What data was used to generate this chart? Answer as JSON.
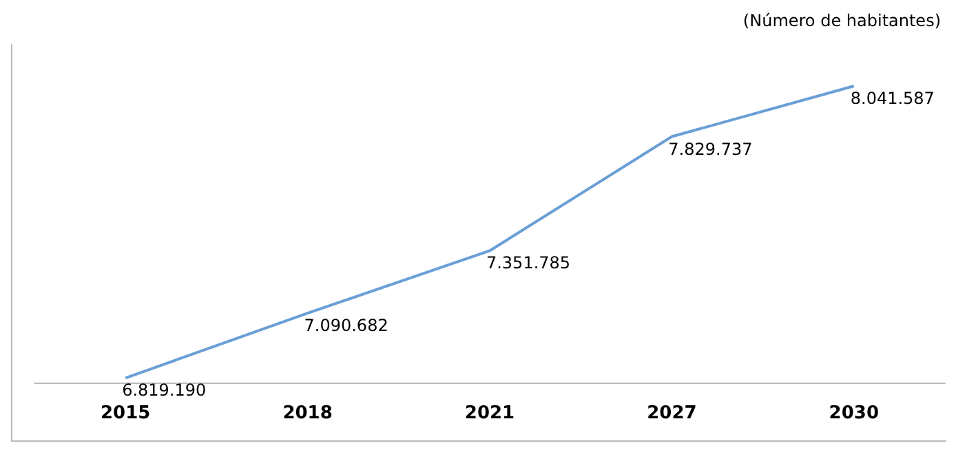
{
  "chart_data": {
    "type": "line",
    "ylabel": "(Número de habitantes)",
    "categories": [
      "2015",
      "2018",
      "2021",
      "2027",
      "2030"
    ],
    "series": [
      {
        "color": "#6a9fd6",
        "values": [
          6819190,
          7090682,
          7351785,
          7829737,
          8041587
        ],
        "value_labels": [
          "6.819.190",
          "7.090.682",
          "7.351.785",
          "7.829.737",
          "8.041.587"
        ]
      }
    ],
    "tick_labels": "x",
    "marker": "none"
  }
}
